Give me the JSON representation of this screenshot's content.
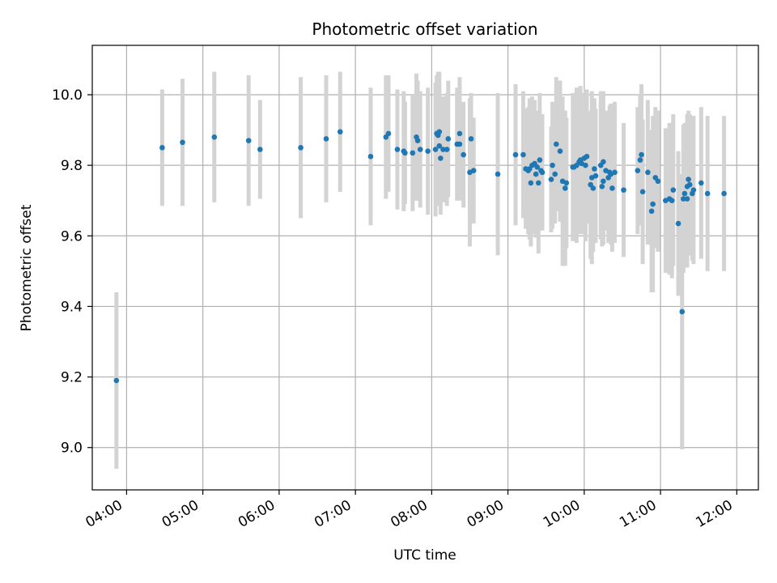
{
  "chart_data": {
    "type": "scatter",
    "title": "Photometric offset variation",
    "xlabel": "UTC time",
    "ylabel": "Photometric offset",
    "xlim": [
      "03:33",
      "12:17"
    ],
    "ylim": [
      8.88,
      10.14
    ],
    "grid": true,
    "x_ticks": [
      "04:00",
      "05:00",
      "06:00",
      "07:00",
      "08:00",
      "09:00",
      "10:00",
      "11:00",
      "12:00"
    ],
    "y_ticks": [
      "9.0",
      "9.2",
      "9.4",
      "9.6",
      "9.8",
      "10.0"
    ],
    "colors": {
      "points": "#1f77b4",
      "error_bars": "#d3d3d3",
      "grid": "#b0b0b0"
    },
    "series": [
      {
        "x": [
          "03:52",
          "04:28",
          "04:44",
          "05:09",
          "05:36",
          "05:45",
          "06:17",
          "06:37",
          "06:48",
          "07:12",
          "07:24",
          "07:26",
          "07:33",
          "07:38",
          "07:39",
          "07:45",
          "07:48",
          "07:49",
          "07:51",
          "07:57",
          "08:03",
          "08:04",
          "08:05",
          "08:06",
          "08:06",
          "08:07",
          "08:09",
          "08:12",
          "08:13",
          "08:20",
          "08:22",
          "08:22",
          "08:25",
          "08:30",
          "08:31",
          "08:33",
          "08:52",
          "09:06",
          "09:12",
          "09:14",
          "09:16",
          "09:17",
          "09:18",
          "09:19",
          "09:21",
          "09:22",
          "09:23",
          "09:24",
          "09:25",
          "09:26",
          "09:27",
          "09:34",
          "09:35",
          "09:37",
          "09:38",
          "09:41",
          "09:43",
          "09:45",
          "09:46",
          "09:51",
          "09:52",
          "09:54",
          "09:56",
          "09:57",
          "09:58",
          "10:00",
          "10:01",
          "10:02",
          "10:05",
          "10:06",
          "10:07",
          "10:08",
          "10:09",
          "10:13",
          "10:14",
          "10:15",
          "10:15",
          "10:17",
          "10:19",
          "10:20",
          "10:21",
          "10:22",
          "10:24",
          "10:31",
          "10:42",
          "10:44",
          "10:45",
          "10:46",
          "10:50",
          "10:53",
          "10:54",
          "10:56",
          "10:58",
          "11:04",
          "11:07",
          "11:09",
          "11:10",
          "11:14",
          "11:17",
          "11:18",
          "11:19",
          "11:21",
          "11:21",
          "11:22",
          "11:23",
          "11:25",
          "11:26",
          "11:32",
          "11:37",
          "11:50"
        ],
        "values": [
          9.19,
          9.85,
          9.865,
          9.88,
          9.87,
          9.845,
          9.85,
          9.875,
          9.895,
          9.825,
          9.88,
          9.89,
          9.845,
          9.84,
          9.835,
          9.835,
          9.88,
          9.87,
          9.845,
          9.84,
          9.845,
          9.89,
          9.885,
          9.895,
          9.855,
          9.82,
          9.845,
          9.845,
          9.875,
          9.86,
          9.89,
          9.86,
          9.83,
          9.78,
          9.875,
          9.785,
          9.775,
          9.83,
          9.83,
          9.79,
          9.785,
          9.79,
          9.75,
          9.8,
          9.805,
          9.775,
          9.795,
          9.75,
          9.815,
          9.785,
          9.78,
          9.76,
          9.8,
          9.775,
          9.86,
          9.84,
          9.755,
          9.735,
          9.75,
          9.795,
          9.795,
          9.8,
          9.81,
          9.815,
          9.805,
          9.82,
          9.8,
          9.825,
          9.745,
          9.765,
          9.735,
          9.79,
          9.77,
          9.8,
          9.74,
          9.755,
          9.81,
          9.785,
          9.765,
          9.78,
          9.775,
          9.735,
          9.78,
          9.73,
          9.785,
          9.815,
          9.83,
          9.725,
          9.78,
          9.67,
          9.69,
          9.765,
          9.755,
          9.7,
          9.705,
          9.7,
          9.73,
          9.635,
          9.385,
          9.705,
          9.72,
          9.705,
          9.74,
          9.76,
          9.745,
          9.72,
          9.73,
          9.75,
          9.72,
          9.72
        ],
        "err": [
          0.25,
          0.165,
          0.18,
          0.185,
          0.185,
          0.14,
          0.2,
          0.18,
          0.17,
          0.195,
          0.175,
          0.165,
          0.17,
          0.17,
          0.145,
          0.165,
          0.18,
          0.17,
          0.165,
          0.18,
          0.19,
          0.165,
          0.18,
          0.17,
          0.17,
          0.16,
          0.15,
          0.16,
          0.165,
          0.16,
          0.16,
          0.16,
          0.15,
          0.21,
          0.13,
          0.15,
          0.23,
          0.2,
          0.18,
          0.17,
          0.18,
          0.2,
          0.18,
          0.195,
          0.18,
          0.18,
          0.16,
          0.2,
          0.19,
          0.14,
          0.165,
          0.15,
          0.18,
          0.14,
          0.19,
          0.2,
          0.24,
          0.22,
          0.185,
          0.21,
          0.18,
          0.22,
          0.19,
          0.21,
          0.2,
          0.17,
          0.215,
          0.19,
          0.21,
          0.245,
          0.18,
          0.2,
          0.19,
          0.21,
          0.17,
          0.18,
          0.2,
          0.17,
          0.185,
          0.19,
          0.2,
          0.18,
          0.2,
          0.19,
          0.18,
          0.185,
          0.2,
          0.205,
          0.205,
          0.23,
          0.25,
          0.2,
          0.2,
          0.205,
          0.215,
          0.22,
          0.215,
          0.205,
          0.39,
          0.21,
          0.2,
          0.195,
          0.205,
          0.195,
          0.2,
          0.19,
          0.21,
          0.215,
          0.22,
          0.22
        ]
      }
    ]
  }
}
